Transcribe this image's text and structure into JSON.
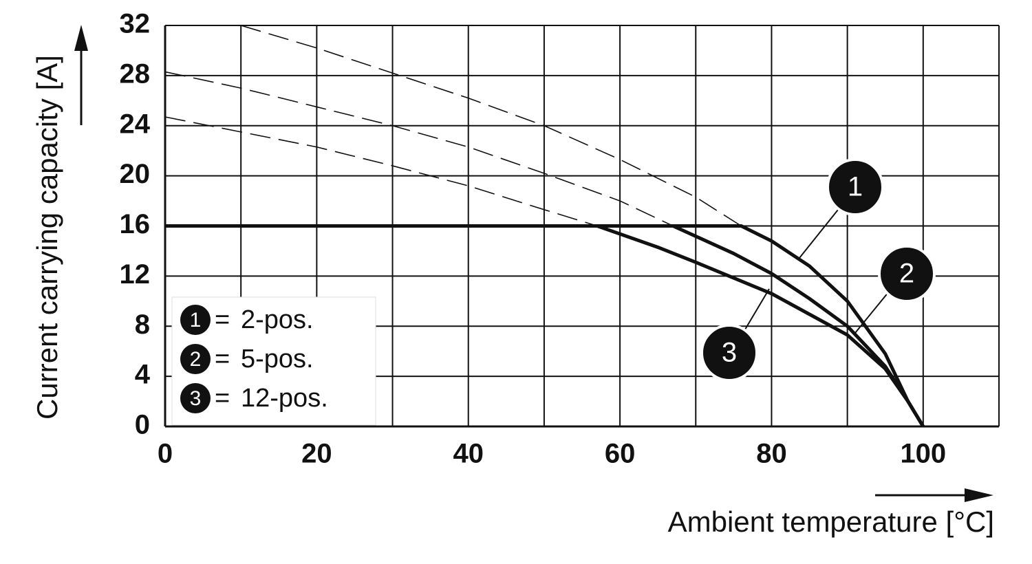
{
  "chart_data": {
    "type": "line",
    "x_label": "Ambient temperature [°C]",
    "y_label": "Current carrying capacity [A]",
    "xlim": [
      0,
      110
    ],
    "ylim": [
      0,
      32
    ],
    "xticks": [
      0,
      20,
      40,
      60,
      80,
      100
    ],
    "x_minor_ticks": [
      10,
      30,
      50,
      70,
      90,
      110
    ],
    "yticks": [
      0,
      4,
      8,
      12,
      16,
      20,
      24,
      28,
      32
    ],
    "grid": true,
    "legend_separator": "=",
    "series": [
      {
        "label": "1",
        "name": "2-pos.",
        "color": "#111111",
        "x": [
          0,
          76,
          80,
          85,
          90,
          95,
          98,
          100
        ],
        "values": [
          16,
          16,
          14.8,
          12.8,
          10,
          5.8,
          2,
          0
        ],
        "dashed_x": [
          10,
          20,
          30,
          40,
          50,
          60,
          70,
          76
        ],
        "dashed_values": [
          32,
          30.2,
          28.2,
          26.2,
          24,
          21.3,
          18.3,
          16
        ]
      },
      {
        "label": "2",
        "name": "5-pos.",
        "color": "#111111",
        "x": [
          0,
          67,
          75,
          80,
          85,
          90,
          95,
          98,
          100
        ],
        "values": [
          16,
          16,
          13.8,
          12.2,
          10.2,
          8,
          4.8,
          2,
          0
        ],
        "dashed_x": [
          0,
          10,
          20,
          30,
          40,
          50,
          60,
          67
        ],
        "dashed_values": [
          28.3,
          27,
          25.5,
          24,
          22.3,
          20.2,
          18,
          16
        ]
      },
      {
        "label": "3",
        "name": "12-pos.",
        "color": "#111111",
        "x": [
          0,
          57,
          65,
          70,
          80,
          90,
          95,
          98,
          100
        ],
        "values": [
          16,
          16,
          14.3,
          13.1,
          10.6,
          7.3,
          4.6,
          2,
          0
        ],
        "dashed_x": [
          0,
          10,
          20,
          30,
          40,
          50,
          57
        ],
        "dashed_values": [
          24.7,
          23.5,
          22.3,
          20.8,
          19.2,
          17.3,
          16
        ]
      }
    ]
  }
}
